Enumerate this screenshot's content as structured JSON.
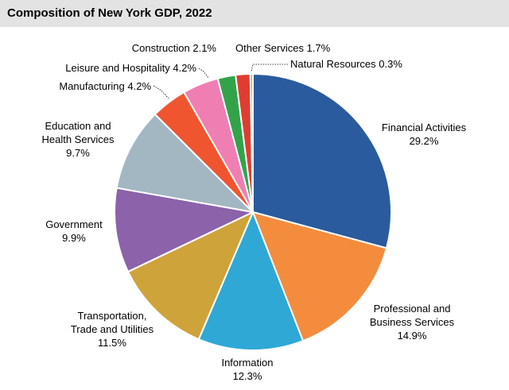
{
  "chart_data": {
    "type": "pie",
    "title": "Composition of New York GDP, 2022",
    "slices": [
      {
        "label": [
          "Financial Activities"
        ],
        "pct_text": "29.2%",
        "value": 29.2,
        "color": "#2a5b9e"
      },
      {
        "label": [
          "Professional and",
          "Business Services"
        ],
        "pct_text": "14.9%",
        "value": 14.9,
        "color": "#f48c3e"
      },
      {
        "label": [
          "Information"
        ],
        "pct_text": "12.3%",
        "value": 12.3,
        "color": "#2fa8d5"
      },
      {
        "label": [
          "Transportation,",
          "Trade and Utilities"
        ],
        "pct_text": "11.5%",
        "value": 11.5,
        "color": "#cea33a"
      },
      {
        "label": [
          "Government"
        ],
        "pct_text": "9.9%",
        "value": 9.9,
        "color": "#8c62aa"
      },
      {
        "label": [
          "Education and",
          "Health Services"
        ],
        "pct_text": "9.7%",
        "value": 9.7,
        "color": "#a3b7c3"
      },
      {
        "label": [
          "Manufacturing"
        ],
        "pct_text": "4.2%",
        "value": 4.2,
        "color": "#ef5630"
      },
      {
        "label": [
          "Leisure and Hospitality"
        ],
        "pct_text": "4.2%",
        "value": 4.2,
        "color": "#ef7eb3"
      },
      {
        "label": [
          "Construction"
        ],
        "pct_text": "2.1%",
        "value": 2.1,
        "color": "#33a34a"
      },
      {
        "label": [
          "Other Services"
        ],
        "pct_text": "1.7%",
        "value": 1.7,
        "color": "#e03d31"
      },
      {
        "label": [
          "Natural Resources"
        ],
        "pct_text": "0.3%",
        "value": 0.3,
        "color": "#ee9a33"
      }
    ]
  }
}
